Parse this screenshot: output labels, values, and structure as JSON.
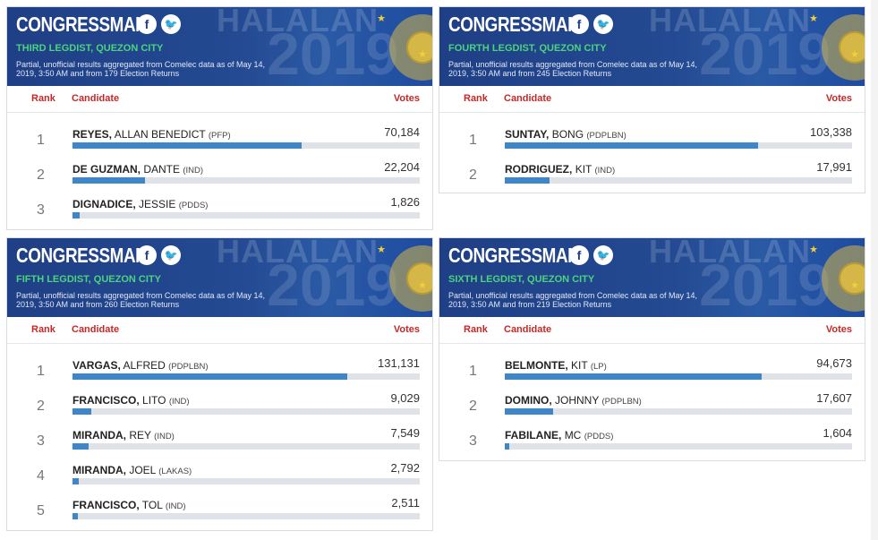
{
  "colors": {
    "banner": "#1f3f86",
    "district": "#4cd37d",
    "header_text": "#c62828",
    "bar": "#3f86c8",
    "track": "#dfe3e8"
  },
  "icons": {
    "facebook": "facebook-icon",
    "twitter": "twitter-icon"
  },
  "banner_deco": {
    "halalan": "HALALAN",
    "year": "2019"
  },
  "columns": {
    "rank": "Rank",
    "candidate": "Candidate",
    "votes": "Votes"
  },
  "cards": [
    {
      "title": "CONGRESSMAN",
      "district": "THIRD LEGDIST, QUEZON CITY",
      "note": "Partial, unofficial results aggregated from Comelec data as of May 14, 2019, 3:50 AM and from 179 Election Returns",
      "max_votes": 100000,
      "candidates": [
        {
          "rank": "1",
          "last": "REYES,",
          "first": "ALLAN BENEDICT",
          "party": "(PFP)",
          "votes": "70,184",
          "fraction": 0.66
        },
        {
          "rank": "2",
          "last": "DE GUZMAN,",
          "first": "DANTE",
          "party": "(IND)",
          "votes": "22,204",
          "fraction": 0.21
        },
        {
          "rank": "3",
          "last": "DIGNADICE,",
          "first": "JESSIE",
          "party": "(PDDS)",
          "votes": "1,826",
          "fraction": 0.02
        }
      ]
    },
    {
      "title": "CONGRESSMAN",
      "district": "FOURTH LEGDIST, QUEZON CITY",
      "note": "Partial, unofficial results aggregated from Comelec data as of May 14, 2019, 3:50 AM and from 245 Election Returns",
      "candidates": [
        {
          "rank": "1",
          "last": "SUNTAY,",
          "first": "BONG",
          "party": "(PDPLBN)",
          "votes": "103,338",
          "fraction": 0.73
        },
        {
          "rank": "2",
          "last": "RODRIGUEZ,",
          "first": "KIT",
          "party": "(IND)",
          "votes": "17,991",
          "fraction": 0.128
        }
      ]
    },
    {
      "title": "CONGRESSMAN",
      "district": "FIFTH LEGDIST, QUEZON CITY",
      "note": "Partial, unofficial results aggregated from Comelec data as of May 14, 2019, 3:50 AM and from 260 Election Returns",
      "candidates": [
        {
          "rank": "1",
          "last": "VARGAS,",
          "first": "ALFRED",
          "party": "(PDPLBN)",
          "votes": "131,131",
          "fraction": 0.79
        },
        {
          "rank": "2",
          "last": "FRANCISCO,",
          "first": "LITO",
          "party": "(IND)",
          "votes": "9,029",
          "fraction": 0.055
        },
        {
          "rank": "3",
          "last": "MIRANDA,",
          "first": "REY",
          "party": "(IND)",
          "votes": "7,549",
          "fraction": 0.046
        },
        {
          "rank": "4",
          "last": "MIRANDA,",
          "first": "JOEL",
          "party": "(LAKAS)",
          "votes": "2,792",
          "fraction": 0.017
        },
        {
          "rank": "5",
          "last": "FRANCISCO,",
          "first": "TOL",
          "party": "(IND)",
          "votes": "2,511",
          "fraction": 0.015
        }
      ]
    },
    {
      "title": "CONGRESSMAN",
      "district": "SIXTH LEGDIST, QUEZON CITY",
      "note": "Partial, unofficial results aggregated from Comelec data as of May 14, 2019, 3:50 AM and from 219 Election Returns",
      "candidates": [
        {
          "rank": "1",
          "last": "BELMONTE,",
          "first": "KIT",
          "party": "(LP)",
          "votes": "94,673",
          "fraction": 0.74
        },
        {
          "rank": "2",
          "last": "DOMINO,",
          "first": "JOHNNY",
          "party": "(PDPLBN)",
          "votes": "17,607",
          "fraction": 0.138
        },
        {
          "rank": "3",
          "last": "FABILANE,",
          "first": "MC",
          "party": "(PDDS)",
          "votes": "1,604",
          "fraction": 0.013
        }
      ]
    }
  ]
}
